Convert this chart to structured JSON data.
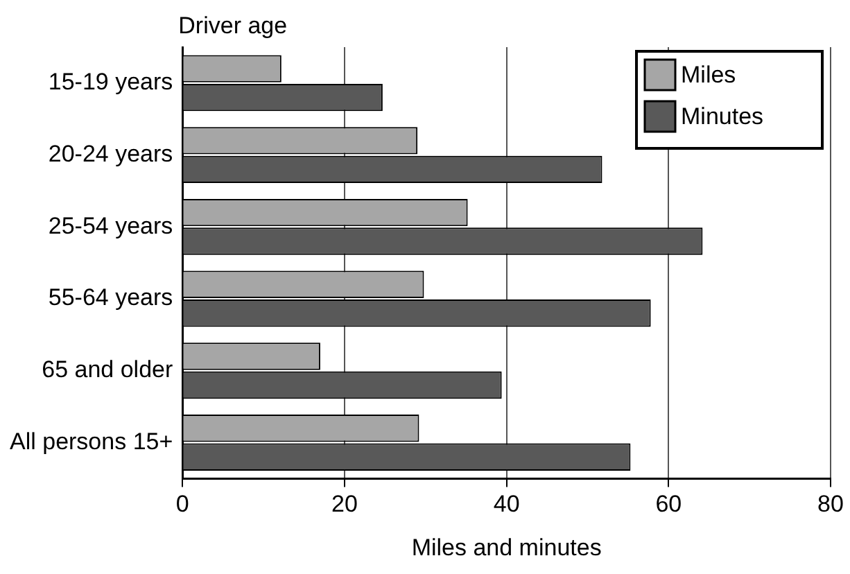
{
  "chart_data": {
    "type": "bar",
    "orientation": "horizontal",
    "ylabel": "Driver age",
    "xlabel": "Miles and minutes",
    "categories": [
      "15-19 years",
      "20-24 years",
      "25-54 years",
      "55-64 years",
      "65 and older",
      "All persons 15+"
    ],
    "series": [
      {
        "name": "Miles",
        "color": "#a6a6a6",
        "values": [
          12.2,
          29,
          35.2,
          29.8,
          17,
          29.2
        ]
      },
      {
        "name": "Minutes",
        "color": "#595959",
        "values": [
          24.7,
          51.8,
          64.2,
          57.8,
          39.4,
          55.3
        ]
      }
    ],
    "xlim": [
      0,
      80
    ],
    "xticks": [
      0,
      20,
      40,
      60,
      80
    ],
    "grid": "x",
    "legend": "top right"
  }
}
